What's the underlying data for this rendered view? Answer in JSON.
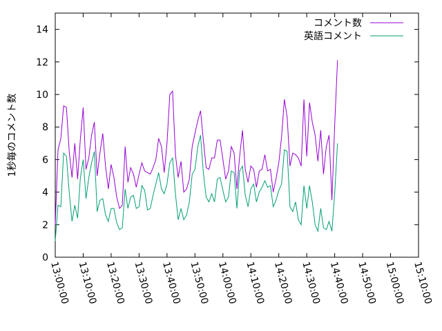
{
  "chart_data": {
    "type": "line",
    "title": "",
    "xlabel": "",
    "ylabel": "1秒毎のコメント数",
    "xlim": [
      "13:00:00",
      "15:10:00"
    ],
    "ylim": [
      0,
      15
    ],
    "x_ticks": [
      "13:00:00",
      "13:10:00",
      "13:20:00",
      "13:30:00",
      "13:40:00",
      "13:50:00",
      "14:00:00",
      "14:10:00",
      "14:20:00",
      "14:30:00",
      "14:40:00",
      "14:50:00",
      "15:00:00",
      "15:10:00"
    ],
    "y_ticks": [
      0,
      2,
      4,
      6,
      8,
      10,
      12,
      14
    ],
    "grid": false,
    "legend_position": "top-right",
    "x_start": "13:00:00",
    "x_step_seconds": 60,
    "series": [
      {
        "name": "コメント数",
        "color": "#9400d3",
        "values": [
          2.0,
          6.6,
          7.3,
          9.3,
          9.2,
          6.5,
          4.9,
          7.0,
          4.8,
          7.3,
          9.2,
          5.4,
          6.1,
          7.5,
          8.3,
          5.0,
          6.4,
          7.6,
          5.6,
          4.2,
          5.7,
          4.9,
          3.7,
          3.0,
          3.2,
          6.8,
          4.6,
          5.5,
          5.1,
          4.3,
          5.1,
          5.8,
          5.3,
          5.2,
          5.1,
          5.5,
          6.0,
          7.3,
          6.8,
          5.2,
          7.0,
          10.0,
          10.2,
          6.3,
          4.9,
          5.9,
          4.0,
          4.2,
          4.8,
          6.8,
          7.6,
          8.4,
          9.0,
          7.2,
          5.5,
          5.4,
          6.1,
          6.1,
          7.2,
          7.2,
          6.0,
          4.8,
          5.3,
          6.8,
          6.4,
          4.2,
          6.2,
          7.8,
          5.4,
          4.6,
          5.6,
          5.4,
          4.3,
          5.3,
          5.4,
          6.3,
          5.3,
          5.4,
          4.0,
          4.8,
          5.8,
          7.4,
          9.7,
          8.6,
          5.6,
          6.4,
          6.3,
          6.1,
          5.6,
          9.7,
          6.2,
          9.5,
          8.3,
          7.5,
          5.9,
          7.8,
          5.1,
          6.8,
          7.5,
          3.5,
          8.1,
          12.1
        ]
      },
      {
        "name": "英語コメント",
        "color": "#009e73",
        "values": [
          1.0,
          3.2,
          3.1,
          6.4,
          6.2,
          4.0,
          2.2,
          3.2,
          2.4,
          4.9,
          6.0,
          3.6,
          4.9,
          5.8,
          6.5,
          2.8,
          3.5,
          3.6,
          2.6,
          2.2,
          3.0,
          3.0,
          2.1,
          1.7,
          1.8,
          4.2,
          3.0,
          3.7,
          3.8,
          3.0,
          3.1,
          4.4,
          4.1,
          2.9,
          3.0,
          3.8,
          4.5,
          5.2,
          4.2,
          3.9,
          4.5,
          5.8,
          6.1,
          3.9,
          2.3,
          3.0,
          2.3,
          2.6,
          3.4,
          5.1,
          5.4,
          6.8,
          7.5,
          5.2,
          3.7,
          3.4,
          3.9,
          3.4,
          4.8,
          4.9,
          4.1,
          3.4,
          3.7,
          5.3,
          5.2,
          3.0,
          5.3,
          5.6,
          3.8,
          3.1,
          4.2,
          4.5,
          3.4,
          4.0,
          4.3,
          4.7,
          4.3,
          4.4,
          3.1,
          3.5,
          4.1,
          4.5,
          6.6,
          6.5,
          3.1,
          2.8,
          3.4,
          2.3,
          2.0,
          4.4,
          3.0,
          4.4,
          3.4,
          2.0,
          1.6,
          3.0,
          1.8,
          1.7,
          2.2,
          1.6,
          3.9,
          7.0
        ]
      }
    ]
  }
}
